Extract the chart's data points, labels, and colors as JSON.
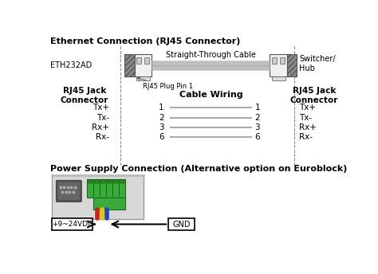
{
  "title1": "Ethernet Connection (RJ45 Connector)",
  "title2": "Power Supply Connection (Alternative option on Euroblock)",
  "eth_label": "ETH232AD",
  "switcher_label": "Switcher/\nHub",
  "cable_label": "Straight-Through Cable",
  "plug_pin_label": "RJ45 Plug Pin 1",
  "rj45_left_header": "RJ45 Jack\nConnector",
  "rj45_right_header": "RJ45 Jack\nConnector",
  "cable_wiring_header": "Cable Wiring",
  "left_pins": [
    "Tx+",
    "Tx-",
    "Rx+",
    "Rx-"
  ],
  "right_pins": [
    "Tx+",
    "Tx-",
    "Rx+",
    "Rx-"
  ],
  "pin_numbers": [
    1,
    2,
    3,
    6
  ],
  "voltage_label": "+9~24VDC",
  "gnd_label": "GND",
  "bg_color": "#ffffff",
  "text_color": "#000000",
  "gray_line": "#aaaaaa",
  "dot_color": "#888888",
  "connector_fill": "#e0e0e0",
  "connector_hatch": "#888888",
  "cable_color": "#c0c0c0",
  "dashed_color": "#888888"
}
